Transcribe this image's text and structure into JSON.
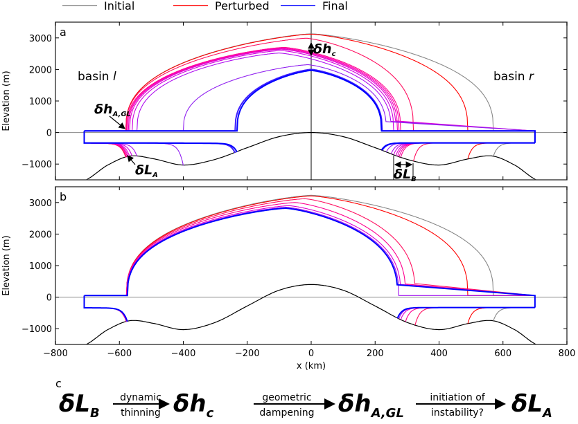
{
  "chart_data": [
    {
      "type": "line",
      "panel": "a",
      "title": "a",
      "xlabel": "",
      "ylabel": "Elevation (m)",
      "xlim": [
        -800,
        800
      ],
      "ylim": [
        -1500,
        3500
      ],
      "yticks": [
        -1000,
        0,
        1000,
        2000,
        3000
      ],
      "bed": {
        "x": [
          -760,
          -700,
          -640,
          -570,
          -500,
          -400,
          -300,
          -200,
          -100,
          0,
          100,
          200,
          300,
          400,
          500,
          570,
          640,
          700,
          760
        ],
        "y": [
          -1700,
          -1480,
          -1050,
          -750,
          -820,
          -1030,
          -850,
          -480,
          -130,
          0,
          -130,
          -480,
          -850,
          -1030,
          -820,
          -750,
          -1050,
          -1480,
          -1700
        ]
      },
      "shelf": {
        "x_left": -710,
        "x_right": 700,
        "top": 50,
        "bottom": -330
      },
      "profiles": [
        {
          "series": "Initial",
          "divide_x": 0,
          "divide_h": 3130,
          "gl_left": -580,
          "gl_right": 570,
          "color": "#888888"
        },
        {
          "series": "Perturbed",
          "divide_x": 0,
          "divide_h": 3120,
          "gl_left": -580,
          "gl_right": 490,
          "color": "#ff0000"
        },
        {
          "series": "Perturbed",
          "divide_x": -15,
          "divide_h": 2990,
          "gl_left": -580,
          "gl_right": 320,
          "color": "#ff1060"
        },
        {
          "series": "Perturbed",
          "divide_x": -85,
          "divide_h": 2700,
          "gl_left": -578,
          "gl_right": 280,
          "color": "#ff0090"
        },
        {
          "series": "Perturbed",
          "divide_x": -88,
          "divide_h": 2680,
          "gl_left": -575,
          "gl_right": 275,
          "color": "#ff00a8"
        },
        {
          "series": "Perturbed",
          "divide_x": -90,
          "divide_h": 2660,
          "gl_left": -572,
          "gl_right": 270,
          "color": "#f000c0"
        },
        {
          "series": "Perturbed",
          "divide_x": -92,
          "divide_h": 2640,
          "gl_left": -568,
          "gl_right": 265,
          "color": "#e000d0"
        },
        {
          "series": "Perturbed",
          "divide_x": -95,
          "divide_h": 2600,
          "gl_left": -560,
          "gl_right": 258,
          "color": "#d000e0"
        },
        {
          "series": "Perturbed",
          "divide_x": -100,
          "divide_h": 2520,
          "gl_left": -545,
          "gl_right": 250,
          "color": "#b010f0"
        },
        {
          "series": "Perturbed",
          "divide_x": -10,
          "divide_h": 2150,
          "gl_left": -400,
          "gl_right": 235,
          "color": "#9020f0"
        },
        {
          "series": "Final",
          "divide_x": 0,
          "divide_h": 2000,
          "gl_left": -238,
          "gl_right": 222,
          "color": "#4020ff"
        },
        {
          "series": "Final",
          "divide_x": 0,
          "divide_h": 1970,
          "gl_left": -232,
          "gl_right": 220,
          "color": "#0000ff"
        }
      ]
    },
    {
      "type": "line",
      "panel": "b",
      "title": "b",
      "xlabel": "x (km)",
      "ylabel": "Elevation (m)",
      "xlim": [
        -800,
        800
      ],
      "ylim": [
        -1500,
        3500
      ],
      "xticks": [
        -800,
        -600,
        -400,
        -200,
        0,
        200,
        400,
        600,
        800
      ],
      "yticks": [
        -1000,
        0,
        1000,
        2000,
        3000
      ],
      "bed": {
        "x": [
          -760,
          -700,
          -640,
          -570,
          -500,
          -400,
          -300,
          -200,
          -100,
          0,
          100,
          200,
          300,
          400,
          500,
          570,
          640,
          700,
          760
        ],
        "y": [
          -1700,
          -1480,
          -1050,
          -750,
          -820,
          -1030,
          -800,
          -280,
          220,
          400,
          220,
          -280,
          -800,
          -1030,
          -820,
          -750,
          -1050,
          -1480,
          -1700
        ]
      },
      "shelf": {
        "x_left": -710,
        "x_right": 700,
        "top": 50,
        "bottom": -330
      },
      "profiles": [
        {
          "series": "Initial",
          "divide_x": 0,
          "divide_h": 3230,
          "gl_left": -578,
          "gl_right": 570,
          "color": "#888888"
        },
        {
          "series": "Perturbed",
          "divide_x": 0,
          "divide_h": 3210,
          "gl_left": -578,
          "gl_right": 490,
          "color": "#ff0000"
        },
        {
          "series": "Perturbed",
          "divide_x": -20,
          "divide_h": 3120,
          "gl_left": -578,
          "gl_right": 325,
          "color": "#ff1060"
        },
        {
          "series": "Perturbed",
          "divide_x": -50,
          "divide_h": 3000,
          "gl_left": -578,
          "gl_right": 295,
          "color": "#ff0090"
        },
        {
          "series": "Perturbed",
          "divide_x": -70,
          "divide_h": 2900,
          "gl_left": -577,
          "gl_right": 280,
          "color": "#e000d0"
        },
        {
          "series": "Perturbed",
          "divide_x": -78,
          "divide_h": 2850,
          "gl_left": -576,
          "gl_right": 274,
          "color": "#a010f0"
        },
        {
          "series": "Final",
          "divide_x": -80,
          "divide_h": 2820,
          "gl_left": -575,
          "gl_right": 270,
          "color": "#0000ff"
        }
      ]
    }
  ],
  "legend": [
    {
      "label": "Initial",
      "color": "#888888"
    },
    {
      "label": "Perturbed",
      "color": "#ff0000"
    },
    {
      "label": "Final",
      "color": "#0000ff"
    }
  ],
  "annotations": {
    "basin_l": "basin ",
    "basin_l_it": "l",
    "basin_r": "basin ",
    "basin_r_it": "r",
    "dhc": "δh",
    "dhc_sub": "c",
    "dhagl": "δh",
    "dhagl_sub": "A,GL",
    "dla": "δL",
    "dla_sub": "A",
    "dlb": "δL",
    "dlb_sub": "B"
  },
  "panel_c": {
    "label": "c",
    "t1": "δL",
    "t1s": "B",
    "a1_top": "dynamic",
    "a1_bot": "thinning",
    "t2": "δh",
    "t2s": "c",
    "a2_top": "geometric",
    "a2_bot": "dampening",
    "t3": "δh",
    "t3s": "A,GL",
    "a3_top": "initiation of",
    "a3_bot": "instability?",
    "t4": "δL",
    "t4s": "A"
  }
}
